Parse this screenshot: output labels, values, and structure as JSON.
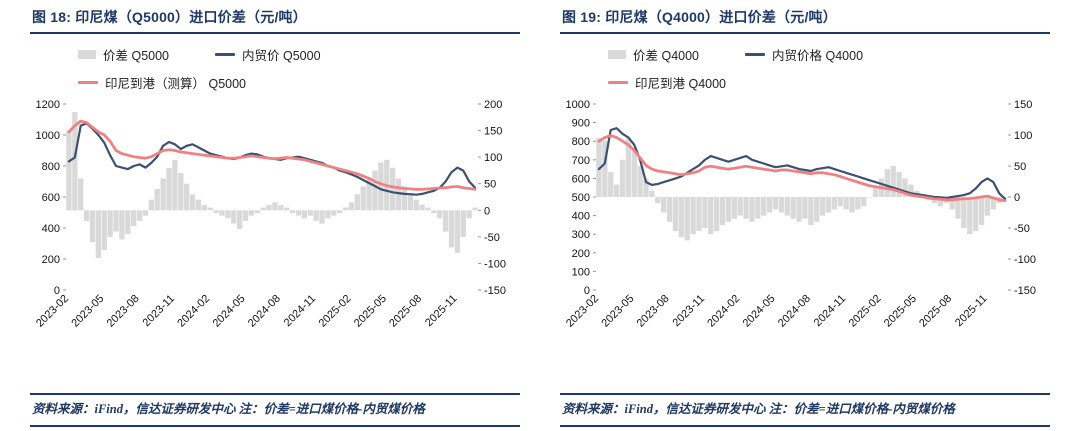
{
  "page": {
    "background": "#FFFFFF",
    "accent_navy": "#1F3864"
  },
  "chart_data": [
    {
      "type": "combo_bar_line",
      "title": "图 18: 印尼煤（Q5000）进口价差（元/吨）",
      "source": "资料来源：iFind，信达证券研发中心 注：价差=进口煤价格-内贸煤价格",
      "legend_position": "top",
      "grid": false,
      "left_axis": {
        "min": 0,
        "max": 1200,
        "step": 200
      },
      "right_axis": {
        "min": -150,
        "max": 200,
        "step": 50
      },
      "x_tick_labels": [
        "2023-02",
        "2023-05",
        "2023-08",
        "2023-11",
        "2024-02",
        "2024-05",
        "2024-08",
        "2024-11",
        "2025-02",
        "2025-05",
        "2025-08",
        "2025-11"
      ],
      "x_tick_step": 6,
      "series": [
        {
          "name": "价差 Q5000",
          "kind": "bar",
          "axis": "right",
          "color": "#D9D9D9",
          "values": [
            150,
            185,
            60,
            -20,
            -60,
            -90,
            -75,
            -50,
            -40,
            -55,
            -45,
            -30,
            -20,
            -10,
            20,
            40,
            60,
            80,
            95,
            70,
            50,
            30,
            20,
            10,
            5,
            -5,
            -10,
            -15,
            -25,
            -35,
            -20,
            -10,
            -5,
            5,
            10,
            15,
            10,
            5,
            -5,
            -10,
            -15,
            -10,
            -20,
            -25,
            -15,
            -10,
            -5,
            5,
            15,
            30,
            45,
            60,
            75,
            90,
            95,
            80,
            60,
            45,
            30,
            20,
            10,
            5,
            -5,
            -15,
            -40,
            -70,
            -80,
            -50,
            -15,
            5
          ]
        },
        {
          "name": "内贸价 Q5000",
          "kind": "line",
          "axis": "left",
          "color": "#3C5071",
          "values": [
            830,
            855,
            1060,
            1075,
            1040,
            1000,
            950,
            870,
            800,
            790,
            780,
            800,
            810,
            790,
            820,
            860,
            930,
            955,
            940,
            910,
            930,
            940,
            920,
            900,
            880,
            870,
            860,
            850,
            845,
            855,
            870,
            880,
            875,
            860,
            850,
            845,
            840,
            850,
            855,
            860,
            850,
            840,
            830,
            820,
            800,
            790,
            770,
            760,
            745,
            730,
            710,
            690,
            670,
            650,
            640,
            630,
            625,
            620,
            618,
            615,
            620,
            630,
            640,
            660,
            700,
            760,
            790,
            770,
            700,
            660
          ]
        },
        {
          "name": "印尼到港（测算） Q5000",
          "kind": "line",
          "axis": "left",
          "color": "#F08183",
          "values": [
            1020,
            1060,
            1090,
            1080,
            1050,
            1020,
            1000,
            960,
            900,
            880,
            870,
            860,
            855,
            850,
            860,
            880,
            900,
            905,
            900,
            890,
            885,
            880,
            875,
            870,
            865,
            860,
            855,
            850,
            850,
            855,
            860,
            865,
            860,
            855,
            850,
            848,
            850,
            855,
            850,
            845,
            840,
            830,
            820,
            810,
            800,
            790,
            780,
            770,
            760,
            750,
            735,
            720,
            700,
            685,
            672,
            665,
            660,
            655,
            652,
            650,
            650,
            652,
            655,
            658,
            660,
            665,
            668,
            660,
            655,
            650
          ]
        }
      ]
    },
    {
      "type": "combo_bar_line",
      "title": "图 19: 印尼煤（Q4000）进口价差（元/吨）",
      "source": "资料来源：iFind，信达证券研发中心 注：价差=进口煤价格-内贸煤价格",
      "legend_position": "top",
      "grid": false,
      "left_axis": {
        "min": 0,
        "max": 1000,
        "step": 100
      },
      "right_axis": {
        "min": -150,
        "max": 150,
        "step": 50
      },
      "x_tick_labels": [
        "2023-02",
        "2023-05",
        "2023-08",
        "2023-11",
        "2024-02",
        "2024-05",
        "2024-08",
        "2024-11",
        "2025-02",
        "2025-05",
        "2025-08",
        "2025-11"
      ],
      "x_tick_step": 6,
      "series": [
        {
          "name": "价差 Q4000",
          "kind": "bar",
          "axis": "right",
          "color": "#D9D9D9",
          "values": [
            95,
            90,
            40,
            20,
            60,
            95,
            80,
            50,
            30,
            10,
            -10,
            -25,
            -40,
            -55,
            -65,
            -70,
            -60,
            -55,
            -50,
            -60,
            -55,
            -45,
            -40,
            -35,
            -30,
            -35,
            -40,
            -35,
            -30,
            -25,
            -20,
            -25,
            -30,
            -35,
            -40,
            -35,
            -45,
            -40,
            -30,
            -25,
            -20,
            -15,
            -20,
            -25,
            -20,
            -15,
            0,
            15,
            30,
            45,
            50,
            40,
            30,
            20,
            10,
            5,
            -5,
            -10,
            -15,
            -10,
            -20,
            -35,
            -50,
            -60,
            -55,
            -45,
            -30,
            -20,
            -10,
            0
          ]
        },
        {
          "name": "内贸价格 Q4000",
          "kind": "line",
          "axis": "left",
          "color": "#3C5071",
          "values": [
            650,
            680,
            860,
            870,
            840,
            820,
            780,
            700,
            580,
            565,
            570,
            580,
            590,
            600,
            610,
            630,
            650,
            670,
            700,
            720,
            710,
            700,
            690,
            700,
            710,
            720,
            700,
            690,
            680,
            670,
            660,
            665,
            670,
            660,
            650,
            645,
            640,
            650,
            655,
            660,
            650,
            640,
            630,
            620,
            610,
            600,
            590,
            580,
            570,
            560,
            550,
            540,
            530,
            520,
            515,
            510,
            505,
            500,
            498,
            495,
            500,
            505,
            510,
            520,
            545,
            580,
            600,
            580,
            520,
            490
          ]
        },
        {
          "name": "印尼到港 Q4000",
          "kind": "line",
          "axis": "left",
          "color": "#F08183",
          "values": [
            800,
            820,
            830,
            820,
            800,
            780,
            750,
            710,
            670,
            650,
            640,
            635,
            630,
            625,
            620,
            625,
            630,
            640,
            660,
            665,
            660,
            655,
            650,
            655,
            660,
            665,
            660,
            655,
            650,
            645,
            640,
            645,
            645,
            640,
            635,
            630,
            625,
            630,
            630,
            625,
            620,
            610,
            600,
            590,
            580,
            570,
            560,
            555,
            550,
            545,
            540,
            530,
            520,
            510,
            505,
            500,
            495,
            490,
            488,
            485,
            485,
            488,
            490,
            492,
            495,
            500,
            505,
            495,
            485,
            480
          ]
        }
      ]
    }
  ]
}
